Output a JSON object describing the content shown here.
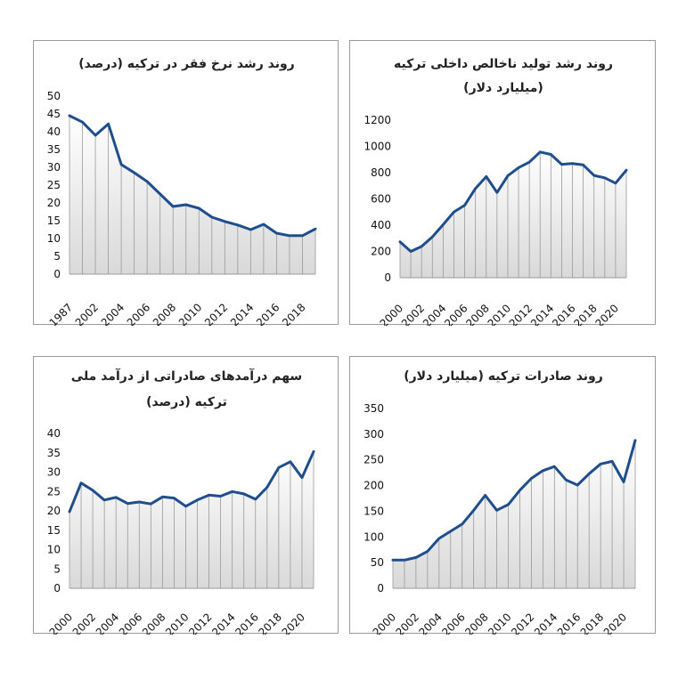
{
  "style": {
    "line_color": "#1f4e8c",
    "drop_line_color": "#9a9a9a",
    "gradient_top": "#ffffff",
    "gradient_bottom": "#d9d9d9"
  },
  "chart_data": [
    {
      "type": "area",
      "title_lines": [
        "روند رشد نرخ فقر در ترکیه (درصد)"
      ],
      "xlabel": "",
      "ylabel": "",
      "ylim": [
        0,
        50
      ],
      "yticks": [
        0,
        5,
        10,
        15,
        20,
        25,
        30,
        35,
        40,
        45,
        50
      ],
      "x": [
        "1987",
        "2001",
        "2002",
        "2003",
        "2004",
        "2005",
        "2006",
        "2007",
        "2008",
        "2009",
        "2010",
        "2011",
        "2012",
        "2013",
        "2014",
        "2015",
        "2016",
        "2017",
        "2018",
        "2019"
      ],
      "xticks": [
        "1987",
        "2002",
        "2004",
        "2006",
        "2008",
        "2010",
        "2012",
        "2014",
        "2016",
        "2018"
      ],
      "values": [
        44.5,
        42.7,
        39,
        42.2,
        30.8,
        28.5,
        26,
        22.5,
        19,
        19.5,
        18.5,
        16,
        14.8,
        13.8,
        12.5,
        14,
        11.5,
        10.8,
        10.8,
        12.7
      ],
      "grid": false,
      "legend": "none"
    },
    {
      "type": "area",
      "title_lines": [
        "روند رشد تولید ناخالص داخلی ترکیه",
        "(میلیارد دلار)"
      ],
      "xlabel": "",
      "ylabel": "",
      "ylim": [
        0,
        1200
      ],
      "yticks": [
        0,
        200,
        400,
        600,
        800,
        1000,
        1200
      ],
      "x": [
        "2000",
        "2001",
        "2002",
        "2003",
        "2004",
        "2005",
        "2006",
        "2007",
        "2008",
        "2009",
        "2010",
        "2011",
        "2012",
        "2013",
        "2014",
        "2015",
        "2016",
        "2017",
        "2018",
        "2019",
        "2020",
        "2021"
      ],
      "xticks": [
        "2000",
        "2002",
        "2004",
        "2006",
        "2008",
        "2010",
        "2012",
        "2014",
        "2016",
        "2018",
        "2020"
      ],
      "values": [
        273,
        200,
        238,
        311,
        404,
        501,
        552,
        680,
        770,
        649,
        777,
        838,
        880,
        957,
        939,
        864,
        869,
        859,
        779,
        761,
        720,
        819
      ],
      "grid": false,
      "legend": "none"
    },
    {
      "type": "area",
      "title_lines": [
        "سهم درآمدهای صادراتی از درآمد ملی",
        "ترکیه (درصد)"
      ],
      "xlabel": "",
      "ylabel": "",
      "ylim": [
        0,
        40
      ],
      "yticks": [
        0,
        5,
        10,
        15,
        20,
        25,
        30,
        35,
        40
      ],
      "x": [
        "2000",
        "2001",
        "2002",
        "2003",
        "2004",
        "2005",
        "2006",
        "2007",
        "2008",
        "2009",
        "2010",
        "2011",
        "2012",
        "2013",
        "2014",
        "2015",
        "2016",
        "2017",
        "2018",
        "2019",
        "2020",
        "2021"
      ],
      "xticks": [
        "2000",
        "2002",
        "2004",
        "2006",
        "2008",
        "2010",
        "2012",
        "2014",
        "2016",
        "2018",
        "2020"
      ],
      "values": [
        19.8,
        27.2,
        25.3,
        22.8,
        23.5,
        21.9,
        22.3,
        21.8,
        23.6,
        23.3,
        21.2,
        22.8,
        24.1,
        23.8,
        25,
        24.4,
        23,
        26.1,
        31.2,
        32.7,
        28.6,
        35.3
      ],
      "grid": false,
      "legend": "none"
    },
    {
      "type": "area",
      "title_lines": [
        "روند صادرات ترکیه (میلیارد دلار)"
      ],
      "xlabel": "",
      "ylabel": "",
      "ylim": [
        0,
        350
      ],
      "yticks": [
        0,
        50,
        100,
        150,
        200,
        250,
        300,
        350
      ],
      "x": [
        "2000",
        "2001",
        "2002",
        "2003",
        "2004",
        "2005",
        "2006",
        "2007",
        "2008",
        "2009",
        "2010",
        "2011",
        "2012",
        "2013",
        "2014",
        "2015",
        "2016",
        "2017",
        "2018",
        "2019",
        "2020",
        "2021"
      ],
      "xticks": [
        "2000",
        "2002",
        "2004",
        "2006",
        "2008",
        "2010",
        "2012",
        "2014",
        "2016",
        "2018",
        "2020"
      ],
      "values": [
        55,
        55,
        60,
        72,
        97,
        111,
        125,
        152,
        181,
        152,
        163,
        191,
        214,
        229,
        237,
        211,
        201,
        223,
        242,
        247,
        207,
        288
      ],
      "grid": false,
      "legend": "none"
    }
  ]
}
